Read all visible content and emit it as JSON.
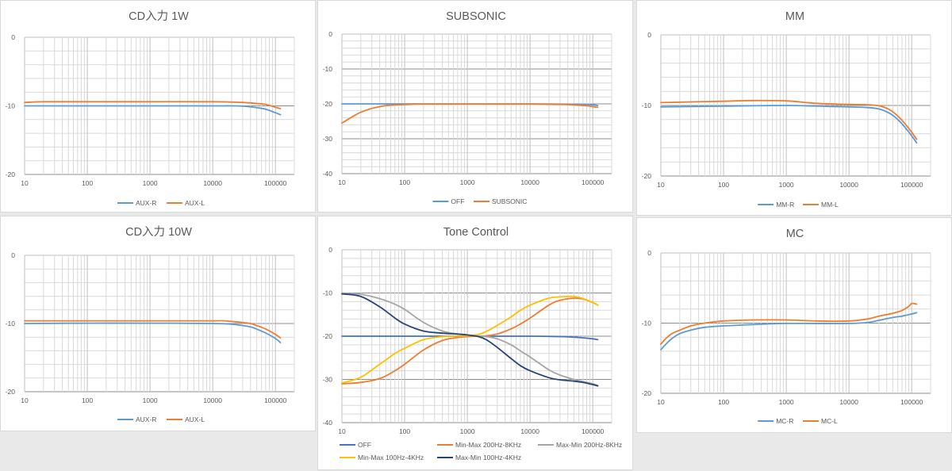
{
  "chart_data": [
    {
      "id": "cd1w",
      "type": "line",
      "title": "CD入力 1W",
      "xscale": "log",
      "xlim": [
        10,
        200000
      ],
      "ylim": [
        -20,
        0
      ],
      "yticks": [
        0,
        -10,
        -20
      ],
      "xticks": [
        "10",
        "100",
        "1000",
        "10000",
        "100000"
      ],
      "y_minor_step": 2,
      "y_dark_lines": [
        -10,
        -20
      ],
      "legend_position": "bottom",
      "series": [
        {
          "name": "AUX-R",
          "color": "#5b9bd5",
          "x": [
            10,
            20,
            100,
            1000,
            10000,
            20000,
            30000,
            50000,
            70000,
            100000,
            120000
          ],
          "y": [
            -10.0,
            -10.0,
            -10.0,
            -10.0,
            -10.0,
            -10.0,
            -10.05,
            -10.25,
            -10.5,
            -11.0,
            -11.3
          ]
        },
        {
          "name": "AUX-L",
          "color": "#ed7d31",
          "x": [
            10,
            20,
            100,
            1000,
            10000,
            20000,
            30000,
            50000,
            70000,
            100000,
            120000
          ],
          "y": [
            -9.5,
            -9.4,
            -9.4,
            -9.4,
            -9.4,
            -9.45,
            -9.5,
            -9.65,
            -9.8,
            -10.2,
            -10.4
          ]
        }
      ]
    },
    {
      "id": "subsonic",
      "type": "line",
      "title": "SUBSONIC",
      "xscale": "log",
      "xlim": [
        10,
        200000
      ],
      "ylim": [
        -40,
        0
      ],
      "yticks": [
        0,
        -10,
        -20,
        -30,
        -40
      ],
      "xticks": [
        "10",
        "100",
        "1000",
        "10000",
        "100000"
      ],
      "y_minor_step": 2,
      "y_dark_lines": [
        -10,
        -20,
        -30,
        -40
      ],
      "legend_position": "bottom",
      "series": [
        {
          "name": "OFF",
          "color": "#5b9bd5",
          "x": [
            10,
            100,
            1000,
            10000,
            50000,
            100000,
            120000
          ],
          "y": [
            -20.0,
            -20.0,
            -20.0,
            -20.0,
            -20.1,
            -20.3,
            -20.5
          ]
        },
        {
          "name": "SUBSONIC",
          "color": "#ed7d31",
          "x": [
            10,
            15,
            20,
            30,
            40,
            50,
            70,
            100,
            200,
            1000,
            10000,
            30000,
            50000,
            80000,
            100000,
            120000
          ],
          "y": [
            -25.5,
            -23.6,
            -22.4,
            -21.3,
            -20.8,
            -20.5,
            -20.3,
            -20.2,
            -20.1,
            -20.1,
            -20.1,
            -20.15,
            -20.3,
            -20.55,
            -20.8,
            -21.0
          ]
        }
      ]
    },
    {
      "id": "mm",
      "type": "line",
      "title": "MM",
      "xscale": "log",
      "xlim": [
        10,
        200000
      ],
      "ylim": [
        -20,
        0
      ],
      "yticks": [
        0,
        -10,
        -20
      ],
      "xticks": [
        "10",
        "100",
        "1000",
        "10000",
        "100000"
      ],
      "y_minor_step": 2,
      "y_dark_lines": [
        -10,
        -20
      ],
      "legend_position": "bottom",
      "series": [
        {
          "name": "MM-R",
          "color": "#5b9bd5",
          "x": [
            10,
            100,
            1000,
            5000,
            10000,
            20000,
            30000,
            40000,
            50000,
            60000,
            70000,
            80000,
            100000,
            120000
          ],
          "y": [
            -10.2,
            -10.1,
            -10.0,
            -10.15,
            -10.2,
            -10.3,
            -10.5,
            -10.9,
            -11.4,
            -12.0,
            -12.6,
            -13.2,
            -14.3,
            -15.3
          ]
        },
        {
          "name": "MM-L",
          "color": "#ed7d31",
          "x": [
            10,
            30,
            100,
            300,
            1000,
            3000,
            10000,
            20000,
            30000,
            40000,
            50000,
            60000,
            70000,
            80000,
            100000,
            120000
          ],
          "y": [
            -9.6,
            -9.5,
            -9.4,
            -9.3,
            -9.35,
            -9.7,
            -9.85,
            -9.9,
            -10.05,
            -10.4,
            -10.9,
            -11.5,
            -12.1,
            -12.7,
            -13.8,
            -14.8
          ]
        }
      ]
    },
    {
      "id": "cd10w",
      "type": "line",
      "title": "CD入力 10W",
      "xscale": "log",
      "xlim": [
        10,
        200000
      ],
      "ylim": [
        -20,
        0
      ],
      "yticks": [
        0,
        -10,
        -20
      ],
      "xticks": [
        "10",
        "100",
        "1000",
        "10000",
        "100000"
      ],
      "y_minor_step": 2,
      "y_dark_lines": [
        -10,
        -20
      ],
      "legend_position": "bottom",
      "series": [
        {
          "name": "AUX-R",
          "color": "#5b9bd5",
          "x": [
            10,
            100,
            1000,
            10000,
            20000,
            30000,
            40000,
            50000,
            70000,
            100000,
            120000
          ],
          "y": [
            -10.0,
            -9.95,
            -9.95,
            -10.0,
            -10.1,
            -10.3,
            -10.5,
            -10.8,
            -11.4,
            -12.2,
            -12.8
          ]
        },
        {
          "name": "AUX-L",
          "color": "#ed7d31",
          "x": [
            10,
            100,
            1000,
            10000,
            15000,
            20000,
            30000,
            40000,
            50000,
            70000,
            100000,
            120000
          ],
          "y": [
            -9.6,
            -9.6,
            -9.6,
            -9.6,
            -9.6,
            -9.7,
            -9.85,
            -10.0,
            -10.3,
            -10.8,
            -11.6,
            -12.1
          ]
        }
      ]
    },
    {
      "id": "tone",
      "type": "line",
      "title": "Tone Control",
      "xscale": "log",
      "xlim": [
        10,
        200000
      ],
      "ylim": [
        -40,
        0
      ],
      "yticks": [
        0,
        -10,
        -20,
        -30,
        -40
      ],
      "xticks": [
        "10",
        "100",
        "1000",
        "10000",
        "100000"
      ],
      "y_minor_step": 2,
      "y_dark_lines": [
        -10,
        -20,
        -30,
        -40
      ],
      "legend_position": "bottom",
      "series": [
        {
          "name": "OFF",
          "color": "#4472c4",
          "x": [
            10,
            100,
            1000,
            10000,
            30000,
            60000,
            100000,
            120000
          ],
          "y": [
            -20.0,
            -20.0,
            -20.0,
            -20.0,
            -20.1,
            -20.3,
            -20.6,
            -20.8
          ]
        },
        {
          "name": "Min-Max 200Hz-8KHz",
          "color": "#ed7d31",
          "x": [
            10,
            20,
            40,
            70,
            100,
            200,
            400,
            700,
            1000,
            1500,
            2000,
            3000,
            5000,
            7000,
            10000,
            20000,
            30000,
            50000,
            70000,
            100000,
            120000
          ],
          "y": [
            -31.0,
            -30.7,
            -29.8,
            -28.0,
            -26.5,
            -23.2,
            -21.0,
            -20.3,
            -20.1,
            -20.0,
            -19.9,
            -19.5,
            -18.3,
            -17.2,
            -15.8,
            -12.8,
            -11.7,
            -11.2,
            -11.4,
            -12.2,
            -12.8
          ]
        },
        {
          "name": "Max-Min 200Hz-8KHz",
          "color": "#a5a5a5",
          "x": [
            10,
            20,
            40,
            70,
            100,
            200,
            400,
            700,
            1000,
            1500,
            2000,
            3000,
            5000,
            7000,
            10000,
            20000,
            30000,
            50000,
            70000,
            100000,
            120000
          ],
          "y": [
            -10.0,
            -10.3,
            -11.3,
            -12.6,
            -13.8,
            -16.8,
            -18.8,
            -19.5,
            -19.8,
            -20.0,
            -20.1,
            -20.6,
            -22.0,
            -23.4,
            -24.8,
            -27.8,
            -29.0,
            -30.0,
            -30.5,
            -31.0,
            -31.4
          ]
        },
        {
          "name": "Min-Max 100Hz-4KHz",
          "color": "#ffc000",
          "x": [
            10,
            20,
            40,
            70,
            100,
            200,
            400,
            700,
            1000,
            1500,
            2000,
            3000,
            5000,
            7000,
            10000,
            20000,
            30000,
            50000,
            70000,
            100000,
            120000
          ],
          "y": [
            -30.8,
            -29.5,
            -26.5,
            -24.0,
            -22.8,
            -20.8,
            -20.1,
            -20.0,
            -19.9,
            -19.6,
            -18.9,
            -17.5,
            -15.5,
            -14.0,
            -12.8,
            -11.2,
            -10.9,
            -10.8,
            -11.3,
            -12.2,
            -12.8
          ]
        },
        {
          "name": "Max-Min 100Hz-4KHz",
          "color": "#264478",
          "x": [
            10,
            20,
            40,
            70,
            100,
            200,
            400,
            700,
            1000,
            1500,
            2000,
            3000,
            5000,
            7000,
            10000,
            20000,
            30000,
            50000,
            70000,
            100000,
            120000
          ],
          "y": [
            -10.2,
            -10.8,
            -13.2,
            -15.8,
            -17.2,
            -18.8,
            -19.3,
            -19.5,
            -19.7,
            -20.1,
            -20.8,
            -22.6,
            -25.2,
            -26.8,
            -28.0,
            -29.6,
            -30.1,
            -30.4,
            -30.7,
            -31.2,
            -31.5
          ]
        }
      ]
    },
    {
      "id": "mc",
      "type": "line",
      "title": "MC",
      "xscale": "log",
      "xlim": [
        10,
        200000
      ],
      "ylim": [
        -20,
        0
      ],
      "yticks": [
        0,
        -10,
        -20
      ],
      "xticks": [
        "10",
        "100",
        "1000",
        "10000",
        "100000"
      ],
      "y_minor_step": 2,
      "y_dark_lines": [
        -10,
        -20
      ],
      "legend_position": "bottom",
      "series": [
        {
          "name": "MC-R",
          "color": "#5b9bd5",
          "x": [
            10,
            12,
            15,
            20,
            30,
            50,
            100,
            300,
            1000,
            10000,
            20000,
            30000,
            50000,
            70000,
            100000,
            120000
          ],
          "y": [
            -13.8,
            -13.0,
            -12.2,
            -11.5,
            -11.0,
            -10.6,
            -10.4,
            -10.2,
            -10.05,
            -10.05,
            -9.9,
            -9.6,
            -9.2,
            -9.0,
            -8.7,
            -8.5
          ]
        },
        {
          "name": "MC-L",
          "color": "#ed7d31",
          "x": [
            10,
            12,
            15,
            20,
            30,
            40,
            50,
            100,
            300,
            1000,
            3000,
            10000,
            20000,
            30000,
            50000,
            70000,
            90000,
            100000,
            120000
          ],
          "y": [
            -13.0,
            -12.2,
            -11.5,
            -11.0,
            -10.4,
            -10.15,
            -10.0,
            -9.7,
            -9.55,
            -9.55,
            -9.7,
            -9.7,
            -9.4,
            -9.0,
            -8.6,
            -8.2,
            -7.6,
            -7.2,
            -7.3
          ]
        }
      ]
    }
  ]
}
